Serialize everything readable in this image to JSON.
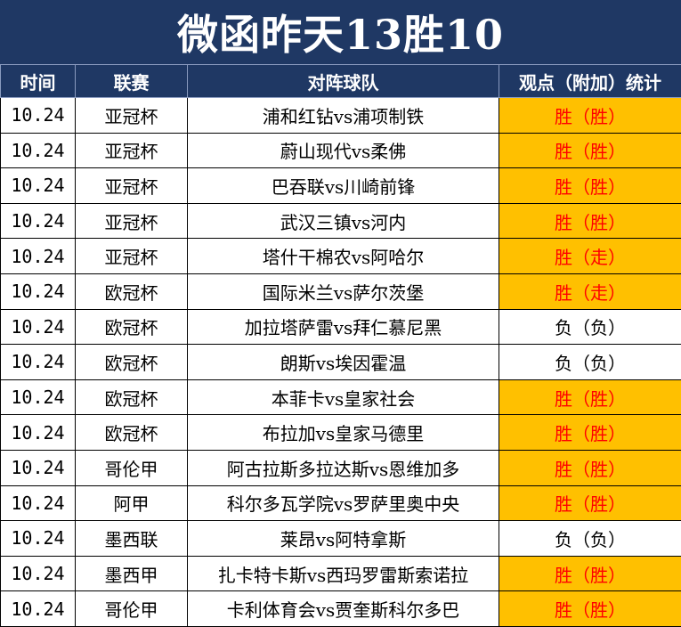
{
  "title": "微函昨天13胜10",
  "headers": {
    "time": "时间",
    "league": "联赛",
    "matchup": "对阵球队",
    "stats": "观点（附加）统计"
  },
  "rows": [
    {
      "date": "10.24",
      "league": "亚冠杯",
      "match": "浦和红钻vs浦项制铁",
      "result": "胜（胜）",
      "outcome": "win"
    },
    {
      "date": "10.24",
      "league": "亚冠杯",
      "match": "蔚山现代vs柔佛",
      "result": "胜（胜）",
      "outcome": "win"
    },
    {
      "date": "10.24",
      "league": "亚冠杯",
      "match": "巴吞联vs川崎前锋",
      "result": "胜（胜）",
      "outcome": "win"
    },
    {
      "date": "10.24",
      "league": "亚冠杯",
      "match": "武汉三镇vs河内",
      "result": "胜（胜）",
      "outcome": "win"
    },
    {
      "date": "10.24",
      "league": "亚冠杯",
      "match": "塔什干棉农vs阿哈尔",
      "result": "胜（走）",
      "outcome": "win"
    },
    {
      "date": "10.24",
      "league": "欧冠杯",
      "match": "国际米兰vs萨尔茨堡",
      "result": "胜（走）",
      "outcome": "win"
    },
    {
      "date": "10.24",
      "league": "欧冠杯",
      "match": "加拉塔萨雷vs拜仁慕尼黑",
      "result": "负（负）",
      "outcome": "loss"
    },
    {
      "date": "10.24",
      "league": "欧冠杯",
      "match": "朗斯vs埃因霍温",
      "result": "负（负）",
      "outcome": "loss"
    },
    {
      "date": "10.24",
      "league": "欧冠杯",
      "match": "本菲卡vs皇家社会",
      "result": "胜（胜）",
      "outcome": "win"
    },
    {
      "date": "10.24",
      "league": "欧冠杯",
      "match": "布拉加vs皇家马德里",
      "result": "胜（胜）",
      "outcome": "win"
    },
    {
      "date": "10.24",
      "league": "哥伦甲",
      "match": "阿古拉斯多拉达斯vs恩维加多",
      "result": "胜（胜）",
      "outcome": "win"
    },
    {
      "date": "10.24",
      "league": "阿甲",
      "match": "科尔多瓦学院vs罗萨里奥中央",
      "result": "胜（胜）",
      "outcome": "win"
    },
    {
      "date": "10.24",
      "league": "墨西联",
      "match": "莱昂vs阿特拿斯",
      "result": "负（负）",
      "outcome": "loss"
    },
    {
      "date": "10.24",
      "league": "墨西甲",
      "match": "扎卡特卡斯vs西玛罗雷斯索诺拉",
      "result": "胜（胜）",
      "outcome": "win"
    },
    {
      "date": "10.24",
      "league": "哥伦甲",
      "match": "卡利体育会vs贾奎斯科尔多巴",
      "result": "胜（胜）",
      "outcome": "win"
    }
  ],
  "colors": {
    "header_bg": "#1f3864",
    "win_bg": "#ffc000",
    "win_text": "#ff0000",
    "loss_text": "#000000"
  }
}
